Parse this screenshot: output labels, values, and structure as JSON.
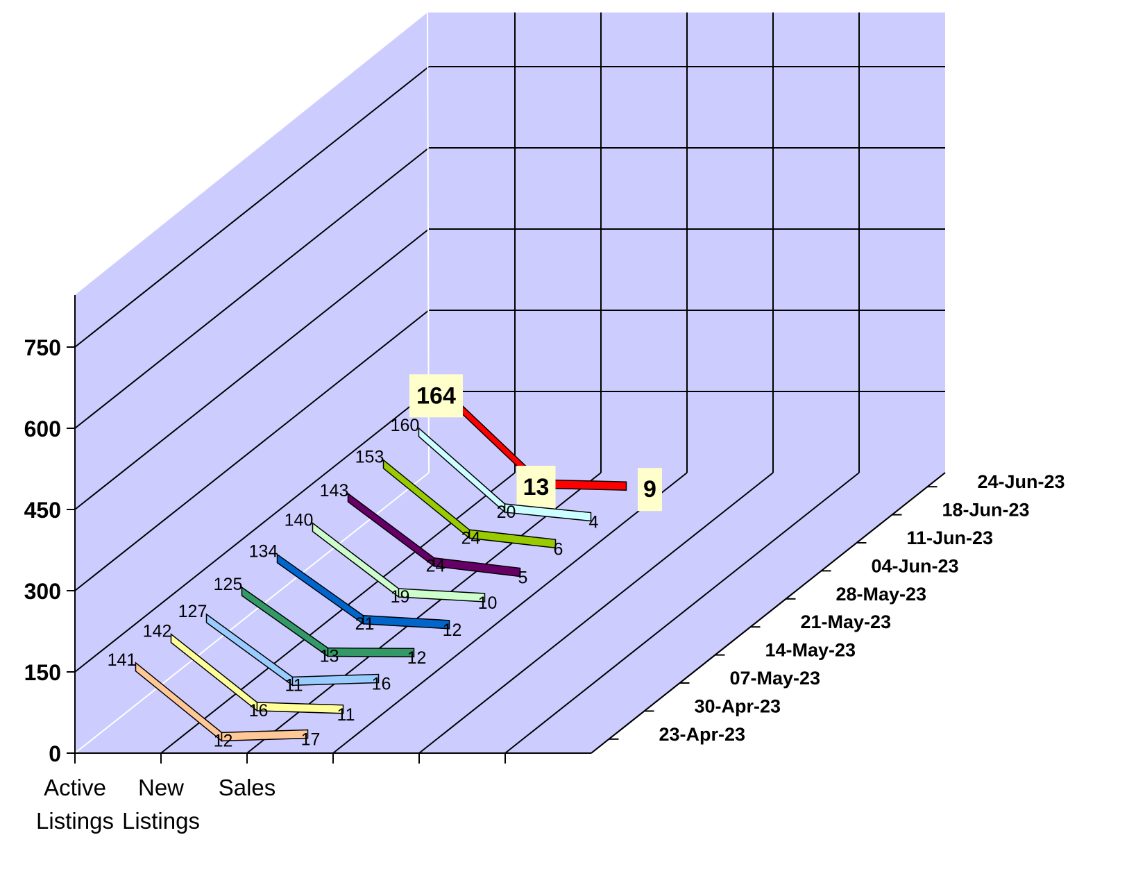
{
  "chart_data": {
    "type": "line",
    "categories": [
      "Active\nListings",
      "New\nListings",
      "Sales"
    ],
    "series": [
      {
        "name": "23-Apr-23",
        "values": [
          141,
          12,
          17
        ],
        "color": "#FFC896"
      },
      {
        "name": "30-Apr-23",
        "values": [
          142,
          16,
          11
        ],
        "color": "#FFFF99"
      },
      {
        "name": "07-May-23",
        "values": [
          127,
          11,
          16
        ],
        "color": "#99CCFF"
      },
      {
        "name": "14-May-23",
        "values": [
          125,
          13,
          12
        ],
        "color": "#339966"
      },
      {
        "name": "21-May-23",
        "values": [
          134,
          21,
          12
        ],
        "color": "#0066CC"
      },
      {
        "name": "28-May-23",
        "values": [
          140,
          19,
          10
        ],
        "color": "#CCFFCC"
      },
      {
        "name": "04-Jun-23",
        "values": [
          143,
          24,
          5
        ],
        "color": "#660066"
      },
      {
        "name": "11-Jun-23",
        "values": [
          153,
          24,
          6
        ],
        "color": "#99CC00"
      },
      {
        "name": "18-Jun-23",
        "values": [
          160,
          20,
          4
        ],
        "color": "#CCFFFF"
      },
      {
        "name": "24-Jun-23",
        "values": [
          164,
          13,
          9
        ],
        "color": "#FF0000"
      }
    ],
    "yticks": [
      0,
      150,
      300,
      450,
      600,
      750
    ],
    "ylim": [
      0,
      750
    ],
    "grid": true,
    "colors": {
      "wall": "#CCCCFF",
      "grid": "#000000"
    }
  }
}
